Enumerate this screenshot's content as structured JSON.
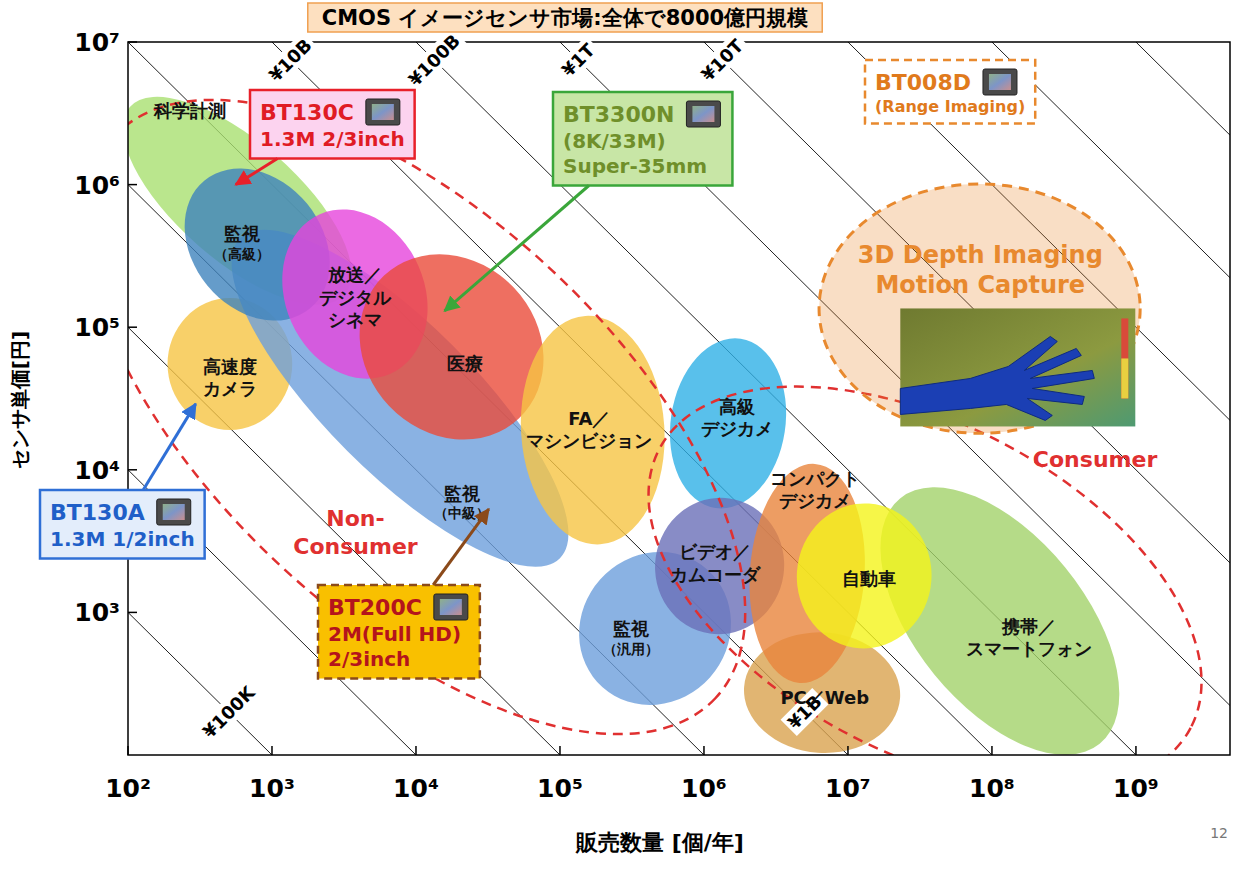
{
  "chart_data": {
    "type": "region",
    "title": "CMOS イメージセンサ市場:全体で8000億円規模",
    "x_label": "販売数量 [個/年]",
    "y_label": "センサ単価[円]",
    "log": true,
    "grid": false,
    "xlim": [
      100,
      4500000000
    ],
    "ylim": [
      100,
      10000000
    ],
    "xticks": [
      {
        "value": 100,
        "label": "10²"
      },
      {
        "value": 1000,
        "label": "10³"
      },
      {
        "value": 10000,
        "label": "10⁴"
      },
      {
        "value": 100000,
        "label": "10⁵"
      },
      {
        "value": 1000000,
        "label": "10⁶"
      },
      {
        "value": 10000000,
        "label": "10⁷"
      },
      {
        "value": 100000000,
        "label": "10⁸"
      },
      {
        "value": 1000000000,
        "label": "10⁹"
      }
    ],
    "yticks": [
      {
        "value": 1000,
        "label": "10³"
      },
      {
        "value": 10000,
        "label": "10⁴"
      },
      {
        "value": 100000,
        "label": "10⁵"
      },
      {
        "value": 1000000,
        "label": "10⁶"
      },
      {
        "value": 10000000,
        "label": "10⁷"
      }
    ],
    "iso_revenue": {
      "values": [
        100000,
        1000000,
        10000000,
        100000000,
        1000000000,
        10000000000,
        100000000000,
        1000000000000,
        10000000000000,
        100000000000000,
        1000000000000000,
        10000000000000000
      ],
      "labels": [
        "¥100K",
        null,
        null,
        null,
        "¥1B",
        "¥10B",
        "¥100B",
        "¥1T",
        "¥10T",
        null,
        null,
        null
      ]
    },
    "regions": [
      {
        "type": "segment",
        "label": [
          "科学計測"
        ],
        "color": "#a9e070",
        "from": [
          103,
          3500000
        ],
        "to": [
          3200,
          170000
        ],
        "breadth": 0.83,
        "label_at": [
          270,
          3300000
        ]
      },
      {
        "type": "segment",
        "label": [
          "高速度",
          "カメラ"
        ],
        "color": "#f6c444",
        "from": [
          510,
          160000
        ],
        "to": [
          510,
          19000
        ],
        "breadth": 0.87,
        "label_at": [
          510,
          44000
        ]
      },
      {
        "type": "segment",
        "label": [
          "監視",
          "（中級）"
        ],
        "color": "#6d9fdc",
        "from": [
          600,
          420000
        ],
        "to": [
          100000,
          2400
        ],
        "breadth": 1.04,
        "label_at": [
          21000,
          5900
        ]
      },
      {
        "type": "segment",
        "label": [
          "監視",
          "（汎用）"
        ],
        "color": "#6d9fdc",
        "from": [
          190000,
          1700
        ],
        "to": [
          1100000,
          350
        ],
        "breadth": 1.1,
        "label_at": [
          310000,
          660
        ]
      },
      {
        "type": "segment",
        "label": [
          "監視",
          "（高級）"
        ],
        "color": "#3f83bd",
        "from": [
          340,
          1070000
        ],
        "to": [
          1830,
          135000
        ],
        "breadth": 0.9,
        "label_at": [
          620,
          390000
        ]
      },
      {
        "type": "segment",
        "label": [
          "放送／",
          "デジタル",
          "シネマ"
        ],
        "color": "#e645dc",
        "from": [
          2150,
          620000
        ],
        "to": [
          6600,
          47000
        ],
        "breadth": 0.97,
        "label_at": [
          3800,
          160000
        ]
      },
      {
        "type": "segment",
        "label": [
          "医療"
        ],
        "color": "#ea4b3a",
        "from": [
          6000,
          230000
        ],
        "to": [
          52000,
          23000
        ],
        "breadth": 1.2,
        "label_at": [
          22000,
          55000
        ]
      },
      {
        "type": "segment",
        "label": [
          "FA／",
          "マシンビジョン"
        ],
        "color": "#f6c444",
        "from": [
          150000,
          120000
        ],
        "to": [
          190000,
          3000
        ],
        "breadth": 1.0,
        "label_at": [
          160000,
          19000
        ]
      },
      {
        "type": "segment",
        "label": [
          "高級",
          "デジカメ"
        ],
        "color": "#2fb0e6",
        "from": [
          1800000,
          83000
        ],
        "to": [
          1200000,
          5400
        ],
        "breadth": 0.8,
        "label_at": [
          1700000,
          23000
        ]
      },
      {
        "type": "segment",
        "label": [
          "ビデオ／",
          "カムコーダ"
        ],
        "color": "#6a6fb8",
        "from": [
          1500000,
          6300
        ],
        "to": [
          1100000,
          710
        ],
        "breadth": 0.9,
        "label_at": [
          1200000,
          2200
        ]
      },
      {
        "type": "segment",
        "label": [
          "携帯／",
          "スマートフォン"
        ],
        "color": "#a3d26a",
        "from": [
          23000000,
          6300
        ],
        "to": [
          560000000,
          120
        ],
        "breadth": 1.18,
        "label_at": [
          180000000,
          660
        ]
      },
      {
        "type": "segment",
        "label": [
          "PC／Web"
        ],
        "color": "#d9a24f",
        "from": [
          1900000,
          300
        ],
        "to": [
          23000000,
          250
        ],
        "breadth": 0.84,
        "label_at": [
          6900000,
          250
        ]
      },
      {
        "type": "segment",
        "label": [
          "コンパクト",
          "デジカメ"
        ],
        "color": "#e9843c",
        "from": [
          5900000,
          11000
        ],
        "to": [
          4600000,
          320
        ],
        "breadth": 0.8,
        "label_at": [
          5900000,
          7200
        ]
      },
      {
        "type": "segment",
        "label": [
          "自動車"
        ],
        "color": "#f4f41a",
        "from": [
          14000000,
          5800
        ],
        "to": [
          12000000,
          560
        ],
        "breadth": 0.94,
        "label_at": [
          14000000,
          1700
        ]
      },
      {
        "type": "group",
        "line_style": "dashed",
        "label": [
          "Non-",
          "Consumer"
        ],
        "color": "#e03030",
        "from": [
          81,
          2200000
        ],
        "to": [
          1200000,
          250
        ],
        "breadth": 2.8,
        "label_at": [
          3800,
          3600
        ]
      },
      {
        "type": "group",
        "line_style": "dashed",
        "label": [
          "Consumer"
        ],
        "color": "#e03030",
        "from": [
          490000,
          14000
        ],
        "to": [
          2400000000,
          155
        ],
        "breadth": 2.3,
        "label_at": [
          520000000,
          11700
        ]
      },
      {
        "type": "highlight",
        "line_style": "dashed",
        "label": [
          "3D Depth Imaging",
          "Motion Capture"
        ],
        "color": "#e8892e",
        "from": [
          6300000,
          135000
        ],
        "to": [
          1070000000,
          135000
        ],
        "breadth": 1.74,
        "label_at": [
          83000000,
          250000
        ]
      }
    ],
    "callouts": [
      {
        "lines": [
          "BT130C",
          "1.3M 2/3inch"
        ],
        "color": "#e8202a",
        "points_to": [
          560,
          1000000
        ]
      },
      {
        "lines": [
          "BT3300N",
          "(8K/33M)",
          "Super-35mm"
        ],
        "color": "#3aa63a",
        "points_to": [
          15800,
          130000
        ]
      },
      {
        "lines": [
          "BT008D",
          "(Range Imaging)"
        ],
        "color": "#e8892e",
        "line_style": "dashed"
      },
      {
        "lines": [
          "BT130A",
          "1.3M 1/2inch"
        ],
        "color": "#2f6fd6",
        "points_to": [
          295,
          29000
        ]
      },
      {
        "lines": [
          "BT200C",
          "2M(Full HD)",
          "2/3inch"
        ],
        "color": "#8b4a1a",
        "line_style": "dashed",
        "points_to": [
          32000,
          5300
        ]
      }
    ]
  },
  "page_number": "12"
}
